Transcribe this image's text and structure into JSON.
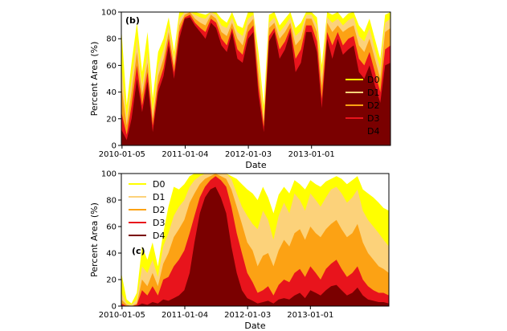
{
  "chart_data": [
    {
      "type": "area",
      "stacked": false,
      "panel_label": "(b)",
      "xlabel": "Date",
      "ylabel": "Percent Area (%)",
      "ylim": [
        0,
        100
      ],
      "yticks": [
        0,
        20,
        40,
        60,
        80,
        100
      ],
      "xlim": [
        "2010-01-01",
        "2014-04-01"
      ],
      "xticks": [
        "2010-01-05",
        "2011-01-04",
        "2012-01-03",
        "2013-01-01"
      ],
      "grid": false,
      "legend_position": "right",
      "x": [
        "2010-01-01",
        "2010-02-01",
        "2010-03-01",
        "2010-04-01",
        "2010-05-01",
        "2010-06-01",
        "2010-07-01",
        "2010-08-01",
        "2010-09-01",
        "2010-10-01",
        "2010-11-01",
        "2010-12-01",
        "2011-01-01",
        "2011-02-01",
        "2011-03-01",
        "2011-04-01",
        "2011-05-01",
        "2011-06-01",
        "2011-07-01",
        "2011-08-01",
        "2011-09-01",
        "2011-10-01",
        "2011-11-01",
        "2011-12-01",
        "2012-01-01",
        "2012-02-01",
        "2012-03-01",
        "2012-04-01",
        "2012-05-01",
        "2012-06-01",
        "2012-07-01",
        "2012-08-01",
        "2012-09-01",
        "2012-10-01",
        "2012-11-01",
        "2012-12-01",
        "2013-01-01",
        "2013-02-01",
        "2013-03-01",
        "2013-04-01",
        "2013-05-01",
        "2013-06-01",
        "2013-07-01",
        "2013-08-01",
        "2013-09-01",
        "2013-10-01",
        "2013-11-01",
        "2013-12-01",
        "2014-01-01",
        "2014-02-01",
        "2014-03-01",
        "2014-04-01"
      ],
      "series": [
        {
          "name": "D0",
          "color": "#ffff00",
          "values": [
            88,
            30,
            62,
            92,
            55,
            85,
            35,
            70,
            80,
            96,
            70,
            100,
            100,
            100,
            100,
            99,
            98,
            100,
            100,
            95,
            92,
            100,
            90,
            88,
            100,
            100,
            70,
            30,
            98,
            100,
            90,
            95,
            100,
            88,
            92,
            100,
            100,
            96,
            60,
            100,
            98,
            100,
            95,
            99,
            100,
            90,
            85,
            95,
            80,
            65,
            98,
            100
          ]
        },
        {
          "name": "D1",
          "color": "#fcd27a",
          "values": [
            60,
            20,
            50,
            80,
            45,
            70,
            25,
            60,
            72,
            90,
            65,
            95,
            100,
            100,
            98,
            96,
            95,
            100,
            98,
            90,
            88,
            96,
            85,
            82,
            95,
            98,
            62,
            22,
            92,
            96,
            85,
            90,
            96,
            82,
            86,
            98,
            98,
            90,
            52,
            96,
            92,
            95,
            90,
            94,
            96,
            82,
            78,
            88,
            72,
            58,
            92,
            95
          ]
        },
        {
          "name": "D2",
          "color": "#fca214",
          "values": [
            45,
            15,
            40,
            70,
            38,
            62,
            20,
            52,
            65,
            85,
            60,
            90,
            98,
            100,
            95,
            92,
            90,
            98,
            95,
            85,
            82,
            92,
            80,
            75,
            90,
            95,
            55,
            18,
            88,
            92,
            80,
            85,
            92,
            75,
            80,
            95,
            95,
            85,
            45,
            92,
            85,
            90,
            85,
            88,
            90,
            75,
            70,
            80,
            65,
            50,
            85,
            88
          ]
        },
        {
          "name": "D3",
          "color": "#e8141c",
          "values": [
            25,
            8,
            30,
            60,
            30,
            55,
            15,
            45,
            58,
            80,
            55,
            85,
            96,
            98,
            92,
            88,
            85,
            95,
            92,
            80,
            75,
            88,
            72,
            68,
            85,
            90,
            45,
            14,
            82,
            88,
            72,
            78,
            88,
            65,
            72,
            90,
            90,
            78,
            35,
            85,
            75,
            85,
            75,
            80,
            82,
            65,
            60,
            70,
            55,
            40,
            72,
            75
          ]
        },
        {
          "name": "D4",
          "color": "#7a0000",
          "values": [
            12,
            4,
            20,
            50,
            25,
            48,
            10,
            40,
            52,
            75,
            50,
            80,
            95,
            96,
            90,
            85,
            80,
            92,
            88,
            75,
            70,
            85,
            65,
            62,
            80,
            85,
            38,
            10,
            78,
            85,
            65,
            72,
            85,
            55,
            62,
            85,
            85,
            70,
            28,
            80,
            65,
            80,
            68,
            72,
            75,
            55,
            50,
            60,
            45,
            32,
            60,
            62
          ]
        }
      ]
    },
    {
      "type": "area",
      "stacked": false,
      "panel_label": "(c)",
      "xlabel": "Date",
      "ylabel": "Percent Area (%)",
      "ylim": [
        0,
        100
      ],
      "yticks": [
        0,
        20,
        40,
        60,
        80,
        100
      ],
      "xlim": [
        "2010-01-01",
        "2014-04-01"
      ],
      "xticks": [
        "2010-01-05",
        "2011-01-04",
        "2012-01-03",
        "2013-01-01"
      ],
      "grid": false,
      "legend_position": "upper-left",
      "x": [
        "2010-01-01",
        "2010-02-01",
        "2010-03-01",
        "2010-04-01",
        "2010-05-01",
        "2010-06-01",
        "2010-07-01",
        "2010-08-01",
        "2010-09-01",
        "2010-10-01",
        "2010-11-01",
        "2010-12-01",
        "2011-01-01",
        "2011-02-01",
        "2011-03-01",
        "2011-04-01",
        "2011-05-01",
        "2011-06-01",
        "2011-07-01",
        "2011-08-01",
        "2011-09-01",
        "2011-10-01",
        "2011-11-01",
        "2011-12-01",
        "2012-01-01",
        "2012-02-01",
        "2012-03-01",
        "2012-04-01",
        "2012-05-01",
        "2012-06-01",
        "2012-07-01",
        "2012-08-01",
        "2012-09-01",
        "2012-10-01",
        "2012-11-01",
        "2012-12-01",
        "2013-01-01",
        "2013-02-01",
        "2013-03-01",
        "2013-04-01",
        "2013-05-01",
        "2013-06-01",
        "2013-07-01",
        "2013-08-01",
        "2013-09-01",
        "2013-10-01",
        "2013-11-01",
        "2013-12-01",
        "2014-01-01",
        "2014-02-01",
        "2014-03-01",
        "2014-04-01"
      ],
      "series": [
        {
          "name": "D0",
          "color": "#ffff00",
          "values": [
            25,
            5,
            2,
            10,
            45,
            35,
            48,
            30,
            55,
            75,
            90,
            88,
            92,
            98,
            100,
            100,
            100,
            100,
            100,
            100,
            100,
            98,
            96,
            92,
            88,
            85,
            80,
            90,
            82,
            70,
            84,
            90,
            85,
            95,
            92,
            88,
            95,
            92,
            90,
            94,
            96,
            98,
            96,
            92,
            95,
            98,
            88,
            85,
            82,
            78,
            74,
            72
          ]
        },
        {
          "name": "D1",
          "color": "#fcd27a",
          "values": [
            10,
            2,
            1,
            5,
            30,
            25,
            35,
            22,
            45,
            55,
            68,
            75,
            80,
            90,
            95,
            98,
            100,
            100,
            100,
            100,
            100,
            96,
            85,
            75,
            68,
            62,
            58,
            72,
            65,
            50,
            68,
            78,
            70,
            85,
            80,
            72,
            85,
            80,
            75,
            82,
            88,
            90,
            85,
            78,
            82,
            88,
            72,
            65,
            60,
            55,
            50,
            45
          ]
        },
        {
          "name": "D2",
          "color": "#fca214",
          "values": [
            5,
            1,
            0,
            2,
            20,
            15,
            25,
            15,
            32,
            40,
            52,
            58,
            65,
            78,
            85,
            92,
            96,
            98,
            100,
            98,
            96,
            88,
            75,
            62,
            48,
            42,
            30,
            38,
            40,
            30,
            42,
            50,
            45,
            55,
            58,
            50,
            60,
            55,
            52,
            58,
            62,
            65,
            58,
            52,
            55,
            62,
            48,
            40,
            35,
            30,
            28,
            25
          ]
        },
        {
          "name": "D3",
          "color": "#e8141c",
          "values": [
            2,
            0,
            0,
            1,
            12,
            8,
            15,
            8,
            20,
            22,
            30,
            35,
            42,
            55,
            68,
            82,
            90,
            95,
            98,
            95,
            90,
            75,
            55,
            40,
            25,
            18,
            10,
            12,
            15,
            8,
            16,
            20,
            18,
            25,
            28,
            22,
            30,
            25,
            20,
            28,
            32,
            35,
            28,
            22,
            25,
            30,
            20,
            15,
            12,
            10,
            10,
            8
          ]
        },
        {
          "name": "D4",
          "color": "#7a0000",
          "values": [
            0,
            0,
            0,
            0,
            2,
            1,
            3,
            2,
            5,
            4,
            6,
            8,
            12,
            25,
            48,
            70,
            82,
            88,
            90,
            82,
            70,
            45,
            25,
            12,
            6,
            4,
            2,
            3,
            4,
            2,
            5,
            6,
            5,
            8,
            10,
            6,
            12,
            10,
            8,
            12,
            15,
            16,
            12,
            8,
            10,
            14,
            8,
            5,
            4,
            3,
            3,
            2
          ]
        }
      ]
    }
  ]
}
